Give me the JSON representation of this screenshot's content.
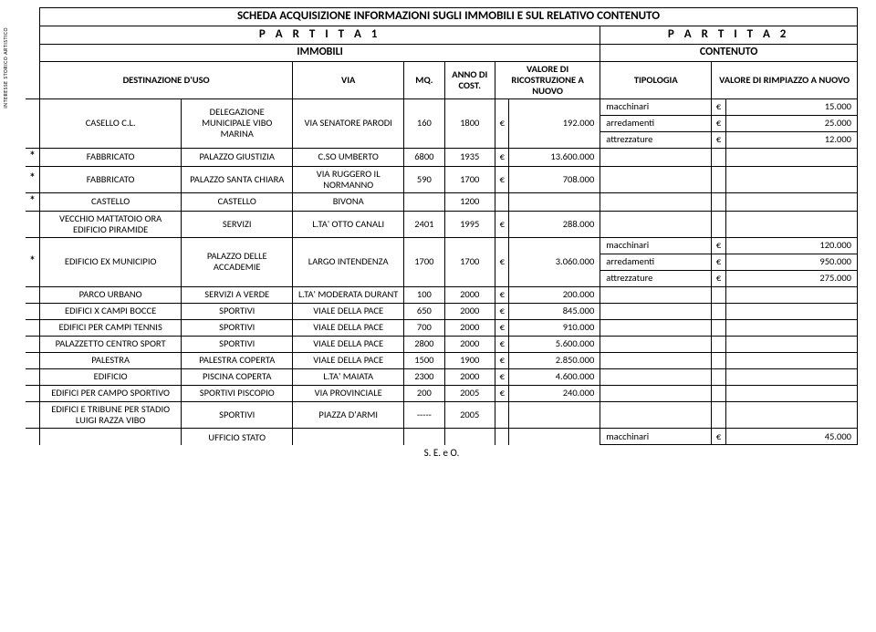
{
  "vertical_label": "INTERESSE STORICO ARTISTICO",
  "title": "SCHEDA ACQUISIZIONE INFORMAZIONI SUGLI IMMOBILI E SUL RELATIVO CONTENUTO",
  "partita1": "P A R T I T A   1",
  "partita2": "P A R T I T A   2",
  "sub1": "IMMOBILI",
  "sub2": "CONTENUTO",
  "h_star": "",
  "h_dest": "DESTINAZIONE D'USO",
  "h_via": "VIA",
  "h_mq": "MQ.",
  "h_anno": "ANNO DI COST.",
  "h_valore": "VALORE DI RICOSTRUZIONE A NUOVO",
  "h_tipologia": "TIPOLOGIA",
  "h_rimpiazzo": "VALORE DI RIMPIAZZO A NUOVO",
  "euro": "€",
  "footer": "S. E. e O.",
  "rows": [
    {
      "star": "",
      "dest": "CASELLO C.L.",
      "uso": "DELEGAZIONE MUNICIPALE  VIBO MARINA",
      "via": "VIA SENATORE PARODI",
      "mq": "160",
      "anno": "1800",
      "val": "192.000",
      "tipos": [
        {
          "t": "macchinari",
          "v": "15.000"
        },
        {
          "t": "arredamenti",
          "v": "25.000"
        },
        {
          "t": "attrezzature",
          "v": "12.000"
        }
      ]
    },
    {
      "star": "*",
      "dest": "FABBRICATO",
      "uso": "PALAZZO GIUSTIZIA",
      "via": "C.SO UMBERTO",
      "mq": "6800",
      "anno": "1935",
      "val": "13.600.000",
      "tipos": []
    },
    {
      "star": "*",
      "dest": "FABBRICATO",
      "uso": "PALAZZO SANTA CHIARA",
      "via": "VIA RUGGERO IL NORMANNO",
      "mq": "590",
      "anno": "1700",
      "val": "708.000",
      "tipos": []
    },
    {
      "star": "*",
      "dest": "CASTELLO",
      "uso": "CASTELLO",
      "via": "BIVONA",
      "mq": "",
      "anno": "1200",
      "val": "",
      "tipos": []
    },
    {
      "star": "",
      "dest": "VECCHIO MATTATOIO ORA EDIFICIO PIRAMIDE",
      "uso": "SERVIZI",
      "via": "L.TA' OTTO CANALI",
      "mq": "2401",
      "anno": "1995",
      "val": "288.000",
      "tipos": []
    },
    {
      "star": "*",
      "dest": "EDIFICIO EX MUNICIPIO",
      "uso": "PALAZZO DELLE ACCADEMIE",
      "via": "LARGO INTENDENZA",
      "mq": "1700",
      "anno": "1700",
      "val": "3.060.000",
      "tipos": [
        {
          "t": "macchinari",
          "v": "120.000"
        },
        {
          "t": "arredamenti",
          "v": "950.000"
        },
        {
          "t": "attrezzature",
          "v": "275.000"
        }
      ]
    },
    {
      "star": "",
      "dest": "PARCO URBANO",
      "uso": "SERVIZI A VERDE",
      "via": "L.TA'  MODERATA DURANT",
      "mq": "100",
      "anno": "2000",
      "val": "200.000",
      "tipos": []
    },
    {
      "star": "",
      "dest": "EDIFICI X CAMPI BOCCE",
      "uso": "SPORTIVI",
      "via": "VIALE DELLA PACE",
      "mq": "650",
      "anno": "2000",
      "val": "845.000",
      "tipos": []
    },
    {
      "star": "",
      "dest": "EDIFICI PER CAMPI TENNIS",
      "uso": "SPORTIVI",
      "via": "VIALE DELLA PACE",
      "mq": "700",
      "anno": "2000",
      "val": "910.000",
      "tipos": []
    },
    {
      "star": "",
      "dest": "PALAZZETTO CENTRO SPORT",
      "uso": "SPORTIVI",
      "via": "VIALE DELLA PACE",
      "mq": "2800",
      "anno": "2000",
      "val": "5.600.000",
      "tipos": []
    },
    {
      "star": "",
      "dest": "PALESTRA",
      "uso": "PALESTRA COPERTA",
      "via": "VIALE DELLA PACE",
      "mq": "1500",
      "anno": "1900",
      "val": "2.850.000",
      "tipos": []
    },
    {
      "star": "",
      "dest": "EDIFICIO",
      "uso": "PISCINA COPERTA",
      "via": "L.TA' MAIATA",
      "mq": "2300",
      "anno": "2000",
      "val": "4.600.000",
      "tipos": []
    },
    {
      "star": "",
      "dest": "EDIFICI PER CAMPO SPORTIVO",
      "uso": "SPORTIVI PISCOPIO",
      "via": "VIA PROVINCIALE",
      "mq": "200",
      "anno": "2005",
      "val": "240.000",
      "tipos": []
    },
    {
      "star": "",
      "dest": "EDIFICI  E TRIBUNE PER STADIO LUIGI RAZZA VIBO",
      "uso": "SPORTIVI",
      "via": "PIAZZA D'ARMI",
      "mq": "-----",
      "anno": "2005",
      "val": "",
      "tipos": []
    }
  ],
  "last_partial": {
    "uso": "UFFICIO STATO",
    "tipos": [
      {
        "t": "macchinari",
        "v": "45.000"
      }
    ]
  }
}
